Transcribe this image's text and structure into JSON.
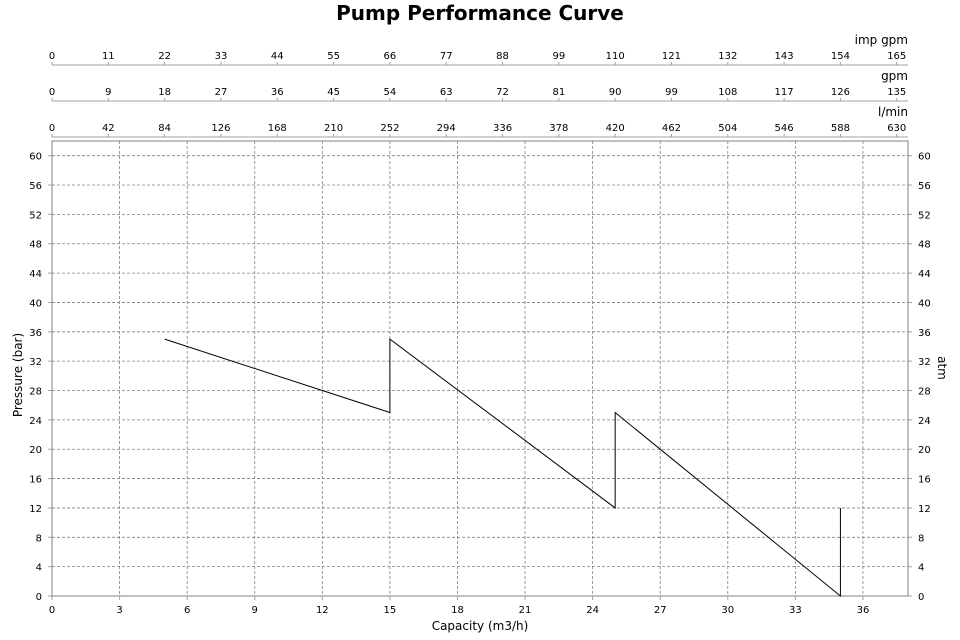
{
  "chart_data": {
    "type": "line",
    "title": "Pump Performance Curve",
    "xlabel": "Capacity (m3/h)",
    "ylabel": "Pressure (bar)",
    "y2label": "atm",
    "xlim": [
      0,
      38
    ],
    "ylim": [
      0,
      62
    ],
    "grid": true,
    "x_ticks": [
      0,
      3,
      6,
      9,
      12,
      15,
      18,
      21,
      24,
      27,
      30,
      33,
      36
    ],
    "y_ticks": [
      0,
      4,
      8,
      12,
      16,
      20,
      24,
      28,
      32,
      36,
      40,
      44,
      48,
      52,
      56,
      60
    ],
    "y2_ticks": [
      0,
      4,
      8,
      12,
      16,
      20,
      24,
      28,
      32,
      36,
      40,
      44,
      48,
      52,
      56,
      60
    ],
    "top_axes": [
      {
        "label": "imp gpm",
        "ticks": [
          0,
          11,
          22,
          33,
          44,
          55,
          66,
          77,
          88,
          99,
          110,
          121,
          132,
          143,
          154,
          165
        ]
      },
      {
        "label": "gpm",
        "ticks": [
          0,
          9,
          18,
          27,
          36,
          45,
          54,
          63,
          72,
          81,
          90,
          99,
          108,
          117,
          126,
          135
        ]
      },
      {
        "label": "l/min",
        "ticks": [
          0,
          42,
          84,
          126,
          168,
          210,
          252,
          294,
          336,
          378,
          420,
          462,
          504,
          546,
          588,
          630
        ]
      }
    ],
    "series": [
      {
        "x": [
          5,
          15,
          15,
          25,
          25,
          35,
          35
        ],
        "y": [
          35,
          25,
          35,
          12,
          25,
          0,
          12
        ]
      }
    ],
    "colors": {
      "line": "#000000",
      "grid": "#808080",
      "axis": "#a0a0a0"
    }
  }
}
